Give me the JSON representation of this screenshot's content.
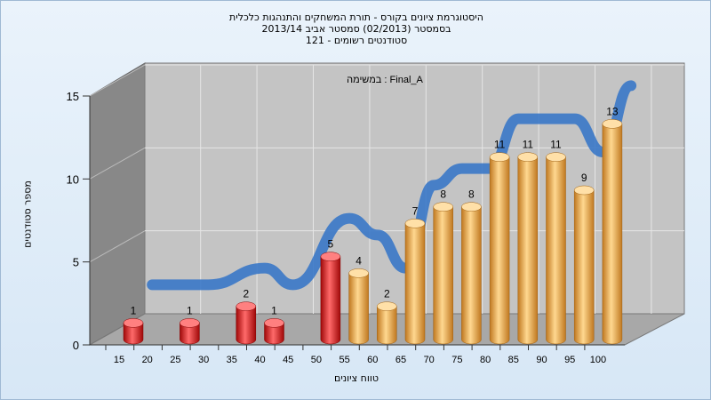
{
  "title": {
    "line1": "היסטוגרמת ציונים בקורס - תורת המשחקים והתנהגות כלכלית",
    "line2": "בסמסטר  (02/2013)  סמסטר אביב 2013/14",
    "line3": "סטודנטים רשומים - 121"
  },
  "colors": {
    "low_bar": "#e0141a",
    "high_bar": "#f0a848",
    "ribbon": "#3a78c8",
    "wall": "#c4c4c4",
    "left_wall": "#888888",
    "floor": "#a8a8a8"
  },
  "chart_data": {
    "type": "bar",
    "title": "היסטוגרמת ציונים בקורס - תורת המשחקים והתנהגות כלכלית",
    "annotation": "במשימה : Final_A",
    "xlabel": "טווח ציונים",
    "ylabel": "מספר סטודנטים",
    "ylim": [
      0,
      15
    ],
    "yticks": [
      0,
      5,
      10,
      15
    ],
    "x_tick_labels": [
      "15",
      "20",
      "25",
      "30",
      "35",
      "40",
      "45",
      "50",
      "55",
      "60",
      "65",
      "70",
      "75",
      "80",
      "85",
      "90",
      "95",
      "100"
    ],
    "categories": [
      "15",
      "25",
      "35",
      "40",
      "50",
      "55",
      "60",
      "65",
      "70",
      "75",
      "80",
      "85",
      "90",
      "95",
      "100"
    ],
    "values": [
      1,
      1,
      2,
      1,
      5,
      4,
      2,
      7,
      8,
      8,
      11,
      11,
      11,
      9,
      13
    ],
    "passing_from": "55",
    "cumulative_ribbon": true,
    "grid": true
  }
}
